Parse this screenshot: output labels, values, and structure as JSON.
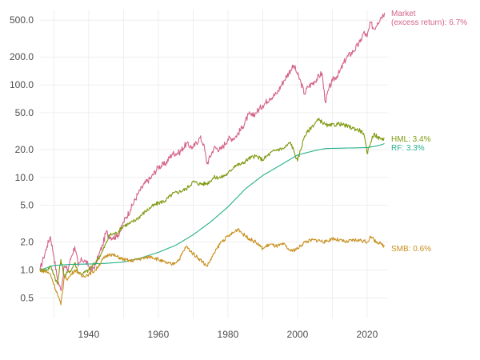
{
  "chart_data": {
    "type": "line",
    "title": "",
    "xlabel": "",
    "ylabel": "",
    "y_scale": "log",
    "xlim": [
      1926,
      2026
    ],
    "ylim": [
      0.3,
      650
    ],
    "x_ticks": [
      1940,
      1960,
      1980,
      2000,
      2020
    ],
    "x_tick_labels": [
      "1940",
      "1960",
      "1980",
      "2000",
      "2020"
    ],
    "y_ticks": [
      0.5,
      1,
      2,
      5,
      10,
      20,
      50,
      100,
      200,
      500
    ],
    "y_tick_labels": [
      "0.5",
      "1.0",
      "2.0",
      "5.0",
      "10.0",
      "20.0",
      "50.0",
      "100.0",
      "200.0",
      "500.0"
    ],
    "grid": true,
    "legend": "direct labels at right end of each line",
    "series": [
      {
        "name": "Market",
        "label_lines": [
          "Market",
          "(excess return): 6.7%"
        ],
        "color": "#d4648a",
        "x": [
          1926,
          1927,
          1928,
          1929,
          1930,
          1931,
          1932,
          1933,
          1934,
          1935,
          1936,
          1937,
          1938,
          1939,
          1940,
          1941,
          1942,
          1943,
          1944,
          1945,
          1946,
          1947,
          1948,
          1949,
          1950,
          1952,
          1954,
          1956,
          1958,
          1960,
          1962,
          1964,
          1966,
          1968,
          1970,
          1972,
          1973,
          1974,
          1976,
          1978,
          1980,
          1982,
          1984,
          1986,
          1987,
          1988,
          1990,
          1992,
          1994,
          1996,
          1998,
          1999,
          2000,
          2001,
          2002,
          2003,
          2005,
          2007,
          2008,
          2009,
          2010,
          2012,
          2014,
          2016,
          2018,
          2019,
          2020,
          2021,
          2022,
          2023,
          2024,
          2025
        ],
        "values": [
          1.0,
          1.35,
          1.8,
          2.3,
          1.4,
          0.8,
          0.6,
          1.1,
          1.0,
          1.4,
          1.8,
          1.1,
          1.3,
          1.25,
          1.1,
          1.0,
          1.15,
          1.5,
          1.85,
          2.6,
          2.3,
          2.25,
          2.3,
          2.6,
          3.3,
          4.5,
          6.5,
          8.5,
          10.0,
          13.0,
          14.0,
          18.0,
          18.5,
          23.0,
          21.0,
          27.0,
          23.0,
          14.0,
          21.0,
          20.0,
          26.0,
          27.0,
          34.0,
          48.0,
          46.0,
          50.0,
          60.0,
          72.0,
          80.0,
          110.0,
          145.0,
          160.0,
          130.0,
          105.0,
          80.0,
          95.0,
          110.0,
          135.0,
          65.0,
          90.0,
          110.0,
          135.0,
          195.0,
          230.0,
          290.0,
          370.0,
          330.0,
          470.0,
          400.0,
          470.0,
          540.0,
          600.0
        ]
      },
      {
        "name": "HML",
        "label_lines": [
          "HML: 3.4%"
        ],
        "color": "#7f9a12",
        "x": [
          1926,
          1928,
          1929,
          1930,
          1931,
          1932,
          1933,
          1934,
          1935,
          1936,
          1937,
          1938,
          1940,
          1942,
          1944,
          1946,
          1948,
          1950,
          1952,
          1954,
          1956,
          1958,
          1960,
          1962,
          1964,
          1966,
          1968,
          1970,
          1972,
          1974,
          1976,
          1978,
          1980,
          1982,
          1984,
          1986,
          1988,
          1990,
          1992,
          1994,
          1996,
          1998,
          1999,
          2000,
          2002,
          2004,
          2006,
          2007,
          2008,
          2009,
          2012,
          2014,
          2016,
          2018,
          2019,
          2020,
          2021,
          2022,
          2023,
          2024,
          2025
        ],
        "values": [
          1.0,
          1.0,
          1.1,
          0.9,
          0.7,
          1.3,
          0.85,
          0.95,
          1.0,
          1.2,
          0.95,
          0.9,
          1.0,
          1.2,
          1.6,
          2.4,
          2.5,
          3.0,
          3.2,
          3.6,
          4.2,
          4.8,
          5.3,
          5.6,
          6.6,
          7.0,
          7.5,
          9.0,
          8.5,
          8.6,
          10.0,
          10.0,
          11.0,
          13.5,
          14.0,
          16.0,
          17.0,
          15.5,
          18.0,
          20.0,
          20.5,
          24.0,
          19.0,
          15.0,
          28.0,
          35.0,
          42.0,
          40.0,
          37.0,
          36.0,
          38.0,
          36.0,
          34.0,
          32.0,
          30.0,
          18.0,
          24.0,
          30.0,
          27.0,
          26.0,
          26.5
        ]
      },
      {
        "name": "RF",
        "label_lines": [
          "RF: 3.3%"
        ],
        "color": "#25b08a",
        "x": [
          1926,
          1930,
          1935,
          1940,
          1945,
          1950,
          1955,
          1960,
          1965,
          1970,
          1975,
          1980,
          1985,
          1990,
          1995,
          2000,
          2005,
          2008,
          2010,
          2015,
          2020,
          2022,
          2024,
          2025
        ],
        "values": [
          1.0,
          1.12,
          1.15,
          1.16,
          1.18,
          1.22,
          1.35,
          1.55,
          1.85,
          2.4,
          3.3,
          4.8,
          7.5,
          10.5,
          13.5,
          17.5,
          19.5,
          20.5,
          20.6,
          20.8,
          21.0,
          21.6,
          22.5,
          23.2
        ]
      },
      {
        "name": "SMB",
        "label_lines": [
          "SMB: 0.6%"
        ],
        "color": "#c8901e",
        "x": [
          1926,
          1928,
          1929,
          1930,
          1931,
          1932,
          1933,
          1934,
          1935,
          1936,
          1937,
          1938,
          1940,
          1942,
          1944,
          1946,
          1948,
          1950,
          1952,
          1954,
          1956,
          1958,
          1960,
          1962,
          1964,
          1966,
          1968,
          1970,
          1972,
          1974,
          1976,
          1978,
          1980,
          1982,
          1983,
          1984,
          1986,
          1988,
          1990,
          1992,
          1994,
          1996,
          1998,
          2000,
          2002,
          2004,
          2006,
          2008,
          2010,
          2012,
          2014,
          2016,
          2018,
          2020,
          2021,
          2022,
          2023,
          2024,
          2025
        ],
        "values": [
          1.0,
          0.95,
          0.9,
          0.7,
          0.55,
          0.42,
          0.85,
          0.8,
          0.9,
          1.0,
          0.95,
          0.85,
          0.9,
          1.0,
          1.3,
          1.5,
          1.4,
          1.3,
          1.25,
          1.3,
          1.35,
          1.4,
          1.3,
          1.2,
          1.15,
          1.3,
          1.8,
          1.5,
          1.3,
          1.1,
          1.5,
          2.0,
          2.3,
          2.6,
          2.8,
          2.5,
          2.2,
          2.0,
          1.7,
          1.9,
          1.8,
          1.9,
          1.6,
          1.7,
          2.0,
          2.1,
          2.1,
          2.0,
          2.2,
          2.1,
          2.0,
          2.1,
          2.1,
          2.0,
          2.3,
          2.1,
          2.0,
          1.9,
          1.8
        ]
      }
    ]
  }
}
